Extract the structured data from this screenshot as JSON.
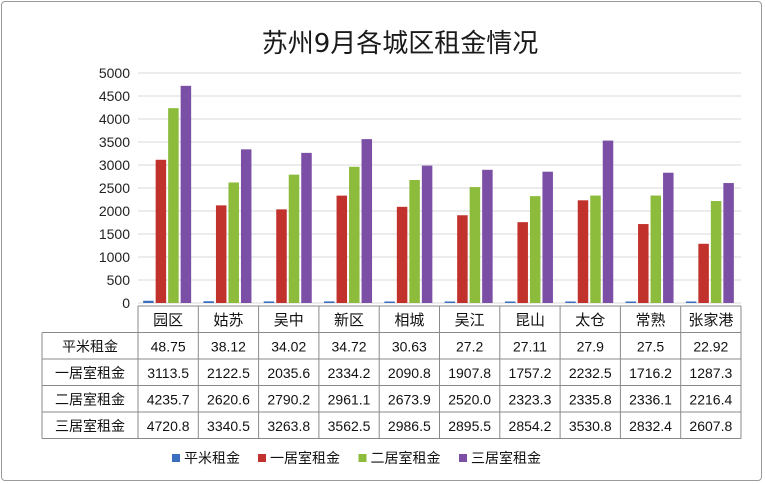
{
  "chart_data": {
    "type": "bar",
    "title": "苏州9月各城区租金情况",
    "categories": [
      "园区",
      "姑苏",
      "吴中",
      "新区",
      "相城",
      "吴江",
      "昆山",
      "太仓",
      "常熟",
      "张家港"
    ],
    "ylim": [
      0,
      5000
    ],
    "yticks": [
      "0",
      "500",
      "1000",
      "1500",
      "2000",
      "2500",
      "3000",
      "3500",
      "4000",
      "4500",
      "5000"
    ],
    "grid": true,
    "legend_position": "bottom",
    "data_table": true,
    "series": [
      {
        "name": "平米租金",
        "color": "#3a6fc0",
        "values": [
          48.75,
          38.12,
          34.02,
          34.72,
          30.63,
          27.2,
          27.11,
          27.9,
          27.5,
          22.92
        ],
        "labels": [
          "48.75",
          "38.12",
          "34.02",
          "34.72",
          "30.63",
          "27.2",
          "27.11",
          "27.9",
          "27.5",
          "22.92"
        ]
      },
      {
        "name": "一居室租金",
        "color": "#c0322b",
        "values": [
          3113.5,
          2122.5,
          2035.6,
          2334.2,
          2090.8,
          1907.8,
          1757.2,
          2232.5,
          1716.2,
          1287.3
        ],
        "labels": [
          "3113.5",
          "2122.5",
          "2035.6",
          "2334.2",
          "2090.8",
          "1907.8",
          "1757.2",
          "2232.5",
          "1716.2",
          "1287.3"
        ]
      },
      {
        "name": "二居室租金",
        "color": "#8dbb3c",
        "values": [
          4235.7,
          2620.6,
          2790.2,
          2961.1,
          2673.9,
          2520.0,
          2323.3,
          2335.8,
          2336.1,
          2216.4
        ],
        "labels": [
          "4235.7",
          "2620.6",
          "2790.2",
          "2961.1",
          "2673.9",
          "2520.0",
          "2323.3",
          "2335.8",
          "2336.1",
          "2216.4"
        ]
      },
      {
        "name": "三居室租金",
        "color": "#7b4fa6",
        "values": [
          4720.8,
          3340.5,
          3263.8,
          3562.5,
          2986.5,
          2895.5,
          2854.2,
          3530.8,
          2832.4,
          2607.8
        ],
        "labels": [
          "4720.8",
          "3340.5",
          "3263.8",
          "3562.5",
          "2986.5",
          "2895.5",
          "2854.2",
          "3530.8",
          "2832.4",
          "2607.8"
        ]
      }
    ]
  }
}
